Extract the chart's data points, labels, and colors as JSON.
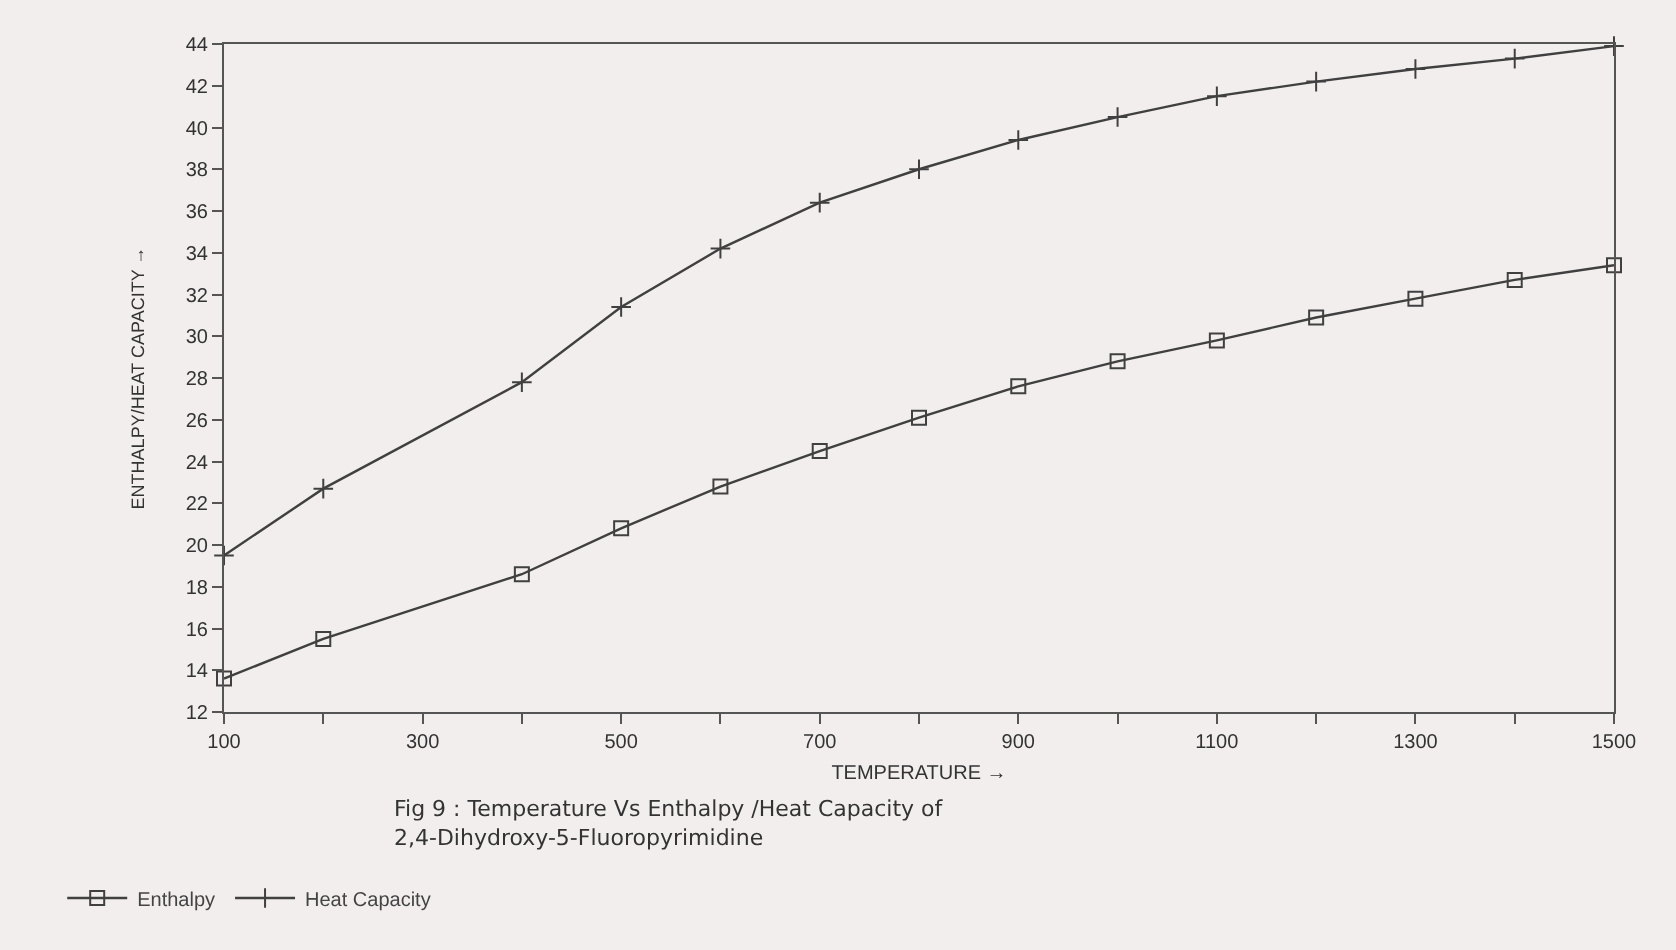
{
  "chart_data": {
    "type": "line",
    "title": "Fig 9 : Temperature Vs Enthalpy /Heat Capacity of\n2,4-Dihydroxy-5-Fluoropyrimidine",
    "xlabel": "TEMPERATURE →",
    "ylabel": "ENTHALPY/HEAT CAPACITY →",
    "x": [
      100,
      200,
      400,
      500,
      600,
      700,
      800,
      900,
      1000,
      1100,
      1200,
      1300,
      1400,
      1500
    ],
    "series": [
      {
        "name": "Enthalpy",
        "color": "#404040",
        "marker": "square",
        "values": [
          13.6,
          15.5,
          18.6,
          20.8,
          22.8,
          24.5,
          26.1,
          27.6,
          28.8,
          29.8,
          30.9,
          31.8,
          32.7,
          33.4
        ]
      },
      {
        "name": "Heat Capacity",
        "color": "#404040",
        "marker": "cross",
        "values": [
          19.5,
          22.7,
          27.8,
          31.4,
          34.2,
          36.4,
          38.0,
          39.4,
          40.5,
          41.5,
          42.2,
          42.8,
          43.3,
          43.9
        ]
      }
    ],
    "xlim": [
      100,
      1500
    ],
    "xticks": [
      100,
      {
        "value": 200,
        "label": null
      },
      300,
      {
        "value": 400,
        "label": null
      },
      500,
      {
        "value": 600,
        "label": null
      },
      700,
      {
        "value": 800,
        "label": null
      },
      900,
      {
        "value": 1000,
        "label": null
      },
      1100,
      {
        "value": 1200,
        "label": null
      },
      1300,
      {
        "value": 1400,
        "label": null
      },
      1500
    ],
    "ylim": [
      12,
      44
    ],
    "yticks": [
      12,
      14,
      16,
      18,
      20,
      22,
      24,
      26,
      28,
      30,
      32,
      34,
      36,
      38,
      40,
      42,
      44
    ],
    "grid": false,
    "legend": "bottom left",
    "line_style": "solid"
  }
}
